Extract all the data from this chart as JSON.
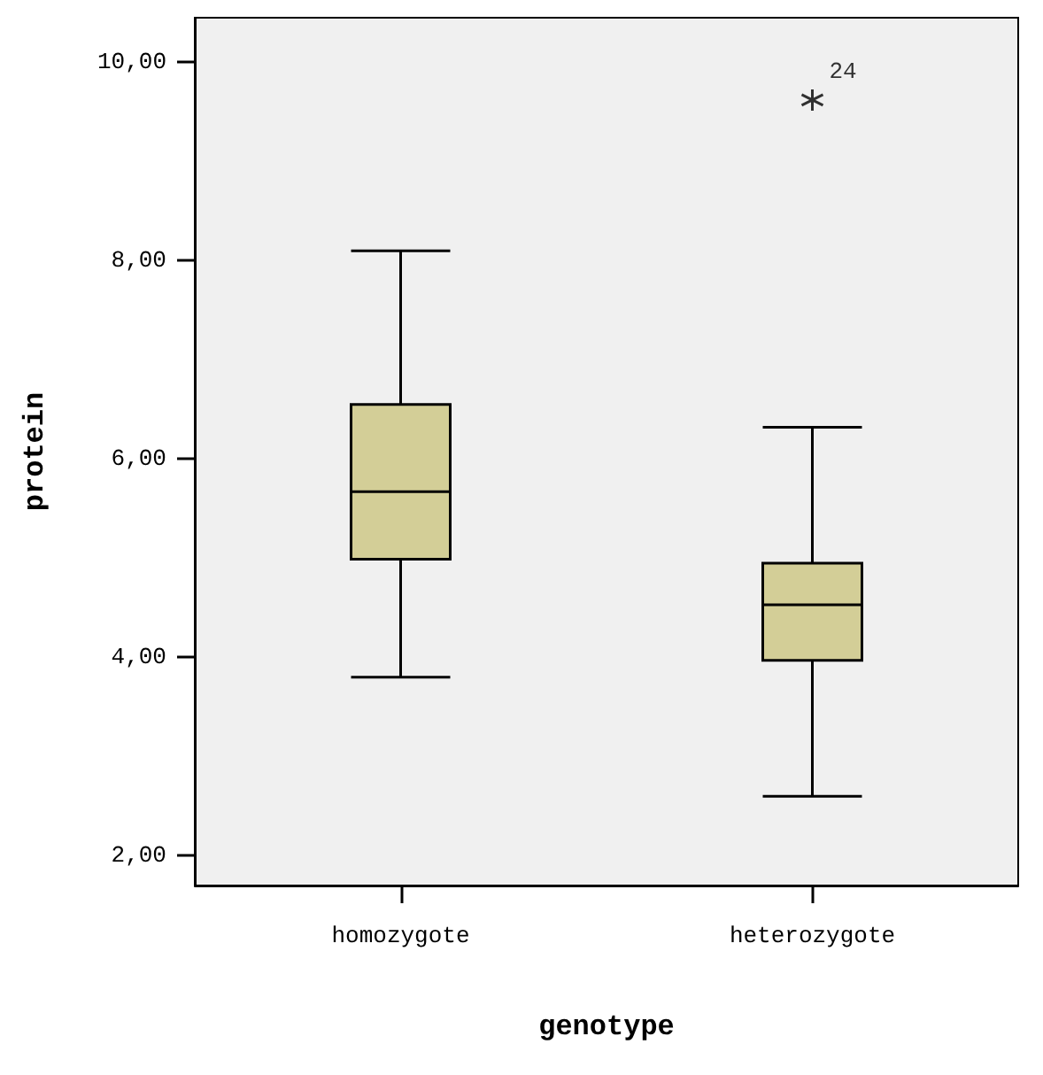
{
  "chart_data": {
    "type": "box",
    "xlabel": "genotype",
    "ylabel": "protein",
    "categories": [
      "homozygote",
      "heterozygote"
    ],
    "boxes": [
      {
        "low": 3.8,
        "q1": 4.99,
        "median": 5.67,
        "q3": 6.55,
        "high": 8.1
      },
      {
        "low": 2.6,
        "q1": 3.97,
        "median": 4.53,
        "q3": 4.95,
        "high": 6.32,
        "outliers": [
          9.62
        ]
      }
    ],
    "color": "#d3ce97",
    "marker": "star",
    "grid": false,
    "ylim": [
      1.7,
      10.45
    ],
    "yticks": [
      {
        "value": 2,
        "label": "2,00"
      },
      {
        "value": 4,
        "label": "4,00"
      },
      {
        "value": 6,
        "label": "6,00"
      },
      {
        "value": 8,
        "label": "8,00"
      },
      {
        "value": 10,
        "label": "10,00"
      }
    ],
    "annotations": [
      "24"
    ]
  }
}
